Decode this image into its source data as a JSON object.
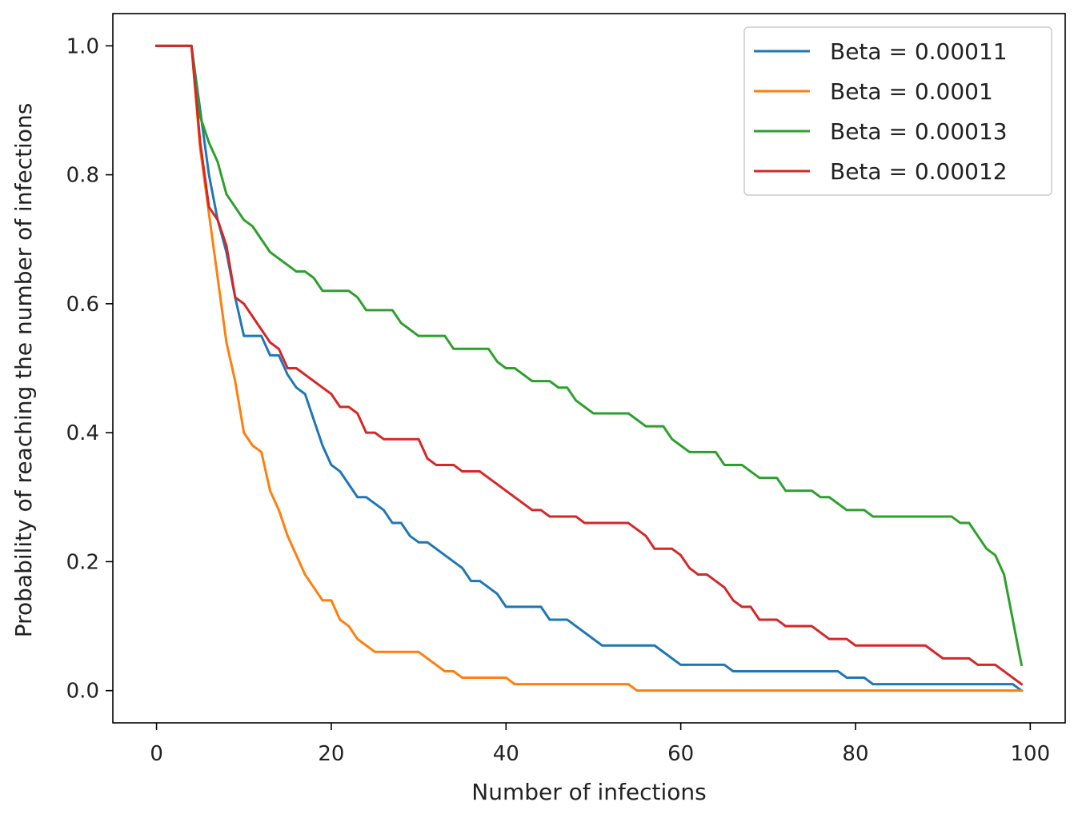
{
  "chart_data": {
    "type": "line",
    "title": "",
    "xlabel": "Number of infections",
    "ylabel": "Probability of reaching the number of infections",
    "xlim": [
      -5,
      104
    ],
    "ylim": [
      -0.05,
      1.05
    ],
    "xticks": [
      0,
      20,
      40,
      60,
      80,
      100
    ],
    "xtick_labels": [
      "0",
      "20",
      "40",
      "60",
      "80",
      "100"
    ],
    "yticks": [
      0.0,
      0.2,
      0.4,
      0.6,
      0.8,
      1.0
    ],
    "ytick_labels": [
      "0.0",
      "0.2",
      "0.4",
      "0.6",
      "0.8",
      "1.0"
    ],
    "grid": false,
    "legend_position": "top-right",
    "series": [
      {
        "name": "Beta = 0.00011",
        "label": "Beta = 0.00011",
        "color": "#1f77b4",
        "points": [
          [
            0,
            1.0
          ],
          [
            4,
            1.0
          ],
          [
            5,
            0.9
          ],
          [
            6,
            0.8
          ],
          [
            7,
            0.73
          ],
          [
            8,
            0.68
          ],
          [
            9,
            0.61
          ],
          [
            10,
            0.55
          ],
          [
            12,
            0.55
          ],
          [
            13,
            0.52
          ],
          [
            14,
            0.52
          ],
          [
            15,
            0.49
          ],
          [
            16,
            0.47
          ],
          [
            17,
            0.46
          ],
          [
            18,
            0.42
          ],
          [
            19,
            0.38
          ],
          [
            20,
            0.35
          ],
          [
            21,
            0.34
          ],
          [
            23,
            0.3
          ],
          [
            24,
            0.3
          ],
          [
            26,
            0.28
          ],
          [
            27,
            0.26
          ],
          [
            28,
            0.26
          ],
          [
            29,
            0.24
          ],
          [
            30,
            0.23
          ],
          [
            31,
            0.23
          ],
          [
            35,
            0.19
          ],
          [
            36,
            0.17
          ],
          [
            37,
            0.17
          ],
          [
            39,
            0.15
          ],
          [
            40,
            0.13
          ],
          [
            44,
            0.13
          ],
          [
            45,
            0.11
          ],
          [
            47,
            0.11
          ],
          [
            51,
            0.07
          ],
          [
            57,
            0.07
          ],
          [
            60,
            0.04
          ],
          [
            65,
            0.04
          ],
          [
            66,
            0.03
          ],
          [
            78,
            0.03
          ],
          [
            79,
            0.02
          ],
          [
            81,
            0.02
          ],
          [
            82,
            0.01
          ],
          [
            98,
            0.01
          ],
          [
            99,
            0.0
          ]
        ]
      },
      {
        "name": "Beta = 0.0001",
        "label": "Beta = 0.0001",
        "color": "#ff7f0e",
        "points": [
          [
            0,
            1.0
          ],
          [
            4,
            1.0
          ],
          [
            5,
            0.84
          ],
          [
            6,
            0.74
          ],
          [
            7,
            0.64
          ],
          [
            8,
            0.54
          ],
          [
            9,
            0.48
          ],
          [
            10,
            0.4
          ],
          [
            11,
            0.38
          ],
          [
            12,
            0.37
          ],
          [
            13,
            0.31
          ],
          [
            14,
            0.28
          ],
          [
            15,
            0.24
          ],
          [
            16,
            0.21
          ],
          [
            17,
            0.18
          ],
          [
            18,
            0.16
          ],
          [
            19,
            0.14
          ],
          [
            20,
            0.14
          ],
          [
            21,
            0.11
          ],
          [
            22,
            0.1
          ],
          [
            23,
            0.08
          ],
          [
            25,
            0.06
          ],
          [
            30,
            0.06
          ],
          [
            33,
            0.03
          ],
          [
            34,
            0.03
          ],
          [
            35,
            0.02
          ],
          [
            40,
            0.02
          ],
          [
            41,
            0.01
          ],
          [
            54,
            0.01
          ],
          [
            55,
            0.0
          ],
          [
            99,
            0.0
          ]
        ]
      },
      {
        "name": "Beta = 0.00013",
        "label": "Beta = 0.00013",
        "color": "#2ca02c",
        "points": [
          [
            0,
            1.0
          ],
          [
            4,
            1.0
          ],
          [
            5,
            0.89
          ],
          [
            6,
            0.85
          ],
          [
            7,
            0.82
          ],
          [
            8,
            0.77
          ],
          [
            9,
            0.75
          ],
          [
            10,
            0.73
          ],
          [
            11,
            0.72
          ],
          [
            12,
            0.7
          ],
          [
            13,
            0.68
          ],
          [
            14,
            0.67
          ],
          [
            15,
            0.66
          ],
          [
            16,
            0.65
          ],
          [
            17,
            0.65
          ],
          [
            18,
            0.64
          ],
          [
            19,
            0.62
          ],
          [
            22,
            0.62
          ],
          [
            23,
            0.61
          ],
          [
            24,
            0.59
          ],
          [
            27,
            0.59
          ],
          [
            28,
            0.57
          ],
          [
            29,
            0.56
          ],
          [
            30,
            0.55
          ],
          [
            33,
            0.55
          ],
          [
            34,
            0.53
          ],
          [
            38,
            0.53
          ],
          [
            39,
            0.51
          ],
          [
            40,
            0.5
          ],
          [
            41,
            0.5
          ],
          [
            42,
            0.49
          ],
          [
            43,
            0.48
          ],
          [
            45,
            0.48
          ],
          [
            46,
            0.47
          ],
          [
            47,
            0.47
          ],
          [
            48,
            0.45
          ],
          [
            49,
            0.44
          ],
          [
            50,
            0.43
          ],
          [
            54,
            0.43
          ],
          [
            55,
            0.42
          ],
          [
            56,
            0.41
          ],
          [
            58,
            0.41
          ],
          [
            59,
            0.39
          ],
          [
            60,
            0.38
          ],
          [
            61,
            0.37
          ],
          [
            64,
            0.37
          ],
          [
            65,
            0.35
          ],
          [
            67,
            0.35
          ],
          [
            68,
            0.34
          ],
          [
            69,
            0.33
          ],
          [
            71,
            0.33
          ],
          [
            72,
            0.31
          ],
          [
            75,
            0.31
          ],
          [
            76,
            0.3
          ],
          [
            77,
            0.3
          ],
          [
            79,
            0.28
          ],
          [
            81,
            0.28
          ],
          [
            82,
            0.27
          ],
          [
            91,
            0.27
          ],
          [
            92,
            0.26
          ],
          [
            93,
            0.26
          ],
          [
            95,
            0.22
          ],
          [
            96,
            0.21
          ],
          [
            97,
            0.18
          ],
          [
            98,
            0.11
          ],
          [
            99,
            0.04
          ]
        ]
      },
      {
        "name": "Beta = 0.00012",
        "label": "Beta = 0.00012",
        "color": "#d62728",
        "points": [
          [
            0,
            1.0
          ],
          [
            4,
            1.0
          ],
          [
            5,
            0.85
          ],
          [
            6,
            0.75
          ],
          [
            7,
            0.73
          ],
          [
            8,
            0.69
          ],
          [
            9,
            0.61
          ],
          [
            10,
            0.6
          ],
          [
            11,
            0.58
          ],
          [
            12,
            0.56
          ],
          [
            13,
            0.54
          ],
          [
            14,
            0.53
          ],
          [
            15,
            0.5
          ],
          [
            16,
            0.5
          ],
          [
            17,
            0.49
          ],
          [
            18,
            0.48
          ],
          [
            19,
            0.47
          ],
          [
            20,
            0.46
          ],
          [
            21,
            0.44
          ],
          [
            22,
            0.44
          ],
          [
            23,
            0.43
          ],
          [
            24,
            0.4
          ],
          [
            25,
            0.4
          ],
          [
            26,
            0.39
          ],
          [
            30,
            0.39
          ],
          [
            31,
            0.36
          ],
          [
            32,
            0.35
          ],
          [
            34,
            0.35
          ],
          [
            35,
            0.34
          ],
          [
            37,
            0.34
          ],
          [
            39,
            0.32
          ],
          [
            41,
            0.3
          ],
          [
            43,
            0.28
          ],
          [
            44,
            0.28
          ],
          [
            45,
            0.27
          ],
          [
            48,
            0.27
          ],
          [
            49,
            0.26
          ],
          [
            54,
            0.26
          ],
          [
            56,
            0.24
          ],
          [
            57,
            0.22
          ],
          [
            59,
            0.22
          ],
          [
            60,
            0.21
          ],
          [
            61,
            0.19
          ],
          [
            62,
            0.18
          ],
          [
            63,
            0.18
          ],
          [
            65,
            0.16
          ],
          [
            66,
            0.14
          ],
          [
            67,
            0.13
          ],
          [
            68,
            0.13
          ],
          [
            69,
            0.11
          ],
          [
            71,
            0.11
          ],
          [
            72,
            0.1
          ],
          [
            75,
            0.1
          ],
          [
            77,
            0.08
          ],
          [
            79,
            0.08
          ],
          [
            80,
            0.07
          ],
          [
            88,
            0.07
          ],
          [
            90,
            0.05
          ],
          [
            93,
            0.05
          ],
          [
            94,
            0.04
          ],
          [
            96,
            0.04
          ],
          [
            99,
            0.01
          ]
        ]
      }
    ]
  }
}
